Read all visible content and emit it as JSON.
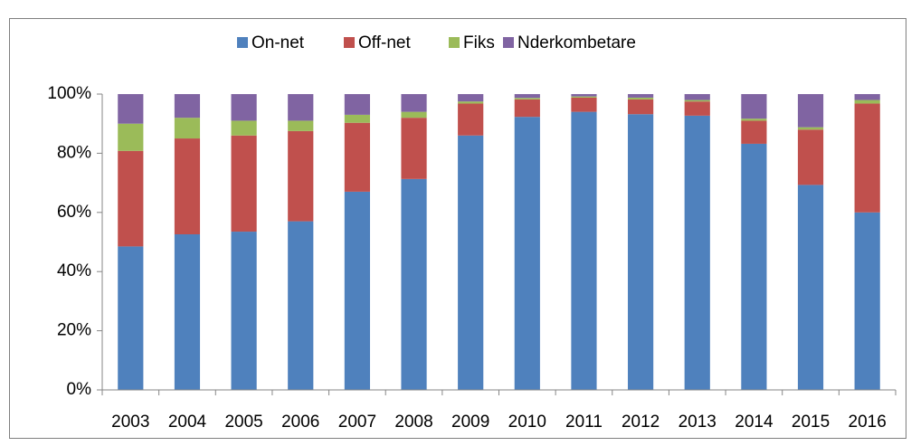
{
  "chart_data": {
    "type": "stacked_bar",
    "categories": [
      "2003",
      "2004",
      "2005",
      "2006",
      "2007",
      "2008",
      "2009",
      "2010",
      "2011",
      "2012",
      "2013",
      "2014",
      "2015",
      "2016"
    ],
    "series": [
      {
        "name": "On-net",
        "color": "#4f81bd",
        "values": [
          48.5,
          52.6,
          53.5,
          57,
          67,
          71.3,
          86,
          92.3,
          94,
          93.2,
          92.7,
          83.2,
          69.3,
          60
        ]
      },
      {
        "name": "Off-net",
        "color": "#c0504d",
        "values": [
          32.3,
          32.4,
          32.5,
          30.5,
          23.3,
          20.7,
          10.8,
          5.9,
          4.8,
          5,
          4.8,
          7.8,
          18.7,
          36.8
        ]
      },
      {
        "name": "Fiks",
        "color": "#9bbb59",
        "values": [
          9.2,
          7,
          5,
          3.5,
          2.7,
          2,
          0.7,
          0.5,
          0.4,
          0.6,
          0.5,
          0.7,
          0.8,
          1.2
        ]
      },
      {
        "name": "Nderkombetare",
        "color": "#8064a2",
        "values": [
          10,
          8,
          9,
          9,
          7,
          6,
          2.5,
          1.3,
          0.8,
          1.2,
          2,
          8.3,
          11.2,
          2
        ]
      }
    ],
    "ylim": [
      0,
      100
    ],
    "yticks": [
      {
        "value": 0,
        "label": "0%"
      },
      {
        "value": 20,
        "label": "20%"
      },
      {
        "value": 40,
        "label": "40%"
      },
      {
        "value": 60,
        "label": "60%"
      },
      {
        "value": 80,
        "label": "80%"
      },
      {
        "value": 100,
        "label": "100%"
      }
    ],
    "legend": "top"
  }
}
